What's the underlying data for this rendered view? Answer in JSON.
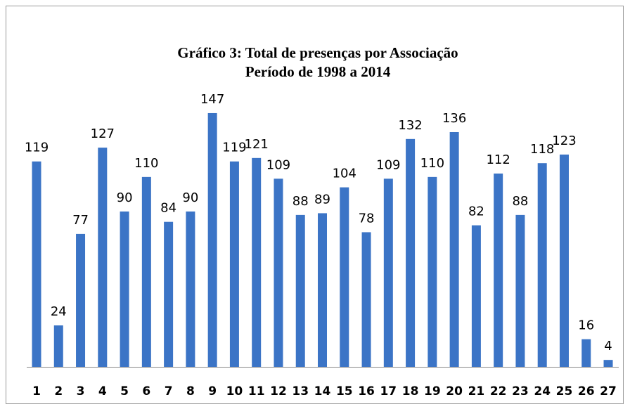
{
  "chart_data": {
    "type": "bar",
    "title": "Gráfico  3: Total de presenças por Associação",
    "subtitle": "Período de 1998 a 2014",
    "categories": [
      "1",
      "2",
      "3",
      "4",
      "5",
      "6",
      "7",
      "8",
      "9",
      "10",
      "11",
      "12",
      "13",
      "14",
      "15",
      "16",
      "17",
      "18",
      "19",
      "20",
      "21",
      "22",
      "23",
      "24",
      "25",
      "26",
      "27"
    ],
    "values": [
      119,
      24,
      77,
      127,
      90,
      110,
      84,
      90,
      147,
      119,
      121,
      109,
      88,
      89,
      104,
      78,
      109,
      132,
      110,
      136,
      82,
      112,
      88,
      118,
      123,
      16,
      4
    ],
    "color": "#3b74c6"
  }
}
